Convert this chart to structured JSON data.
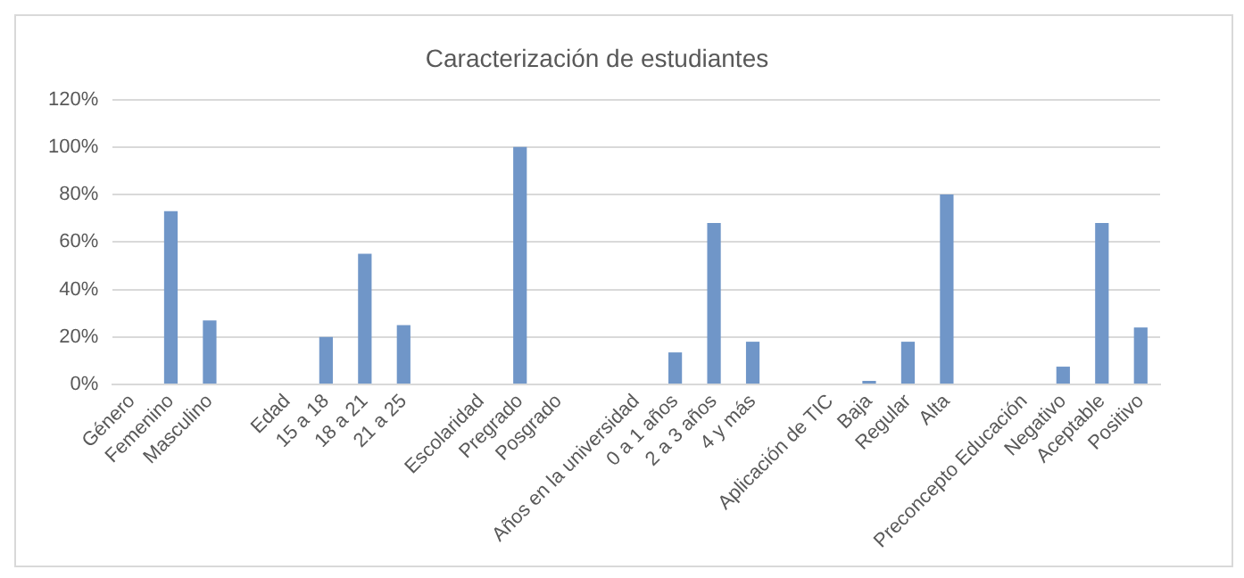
{
  "chart_data": {
    "type": "bar",
    "title": "Caracterización de estudiantes",
    "categories": [
      "Género",
      "Femenino",
      "Masculino",
      null,
      "Edad",
      "15 a 18",
      "18 a 21",
      "21 a 25",
      null,
      "Escolaridad",
      "Pregrado",
      "Posgrado",
      null,
      "Años en la universidad",
      "0 a 1 años",
      "2 a 3 años",
      "4 y más",
      null,
      "Aplicación de TIC",
      "Baja",
      "Regular",
      "Alta",
      null,
      "Preconcepto Educación",
      "Negativo",
      "Aceptable",
      "Positivo"
    ],
    "values": [
      null,
      73,
      27,
      null,
      null,
      20,
      55,
      25,
      null,
      null,
      100,
      null,
      null,
      null,
      13.5,
      68,
      18,
      null,
      null,
      1.5,
      18,
      80,
      null,
      null,
      7.5,
      68,
      24
    ],
    "color": "#7096c8",
    "ylim": [
      0,
      120
    ],
    "yticks": [
      {
        "value": 0,
        "label": "0%"
      },
      {
        "value": 20,
        "label": "20%"
      },
      {
        "value": 40,
        "label": "40%"
      },
      {
        "value": 60,
        "label": "60%"
      },
      {
        "value": 80,
        "label": "80%"
      },
      {
        "value": 100,
        "label": "100%"
      },
      {
        "value": 120,
        "label": "120%"
      }
    ],
    "grid": "y",
    "legend": false
  }
}
